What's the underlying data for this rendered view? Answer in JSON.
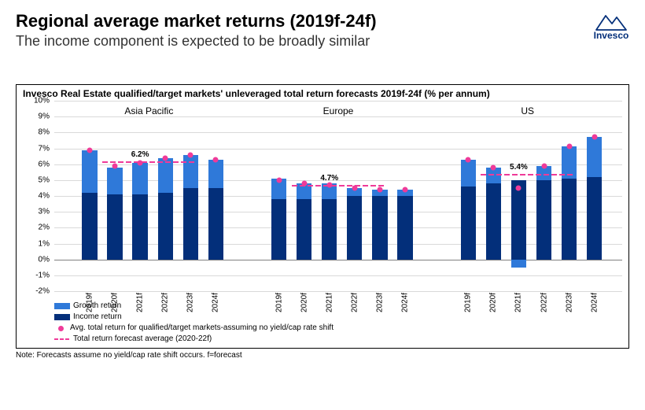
{
  "header": {
    "title": "Regional average market returns (2019f-24f)",
    "subtitle": "The income component is expected to be broadly similar",
    "brand": "Invesco"
  },
  "chart": {
    "title": "Invesco Real Estate qualified/target markets' unleveraged total return forecasts 2019f-24f (% per annum)",
    "type": "grouped-stacked-bar",
    "y": {
      "min": -2,
      "max": 10,
      "step": 1,
      "suffix": "%"
    },
    "years": [
      "2019f",
      "2020f",
      "2021f",
      "2022f",
      "2023f",
      "2024f"
    ],
    "colors": {
      "income": "#032f7a",
      "growth": "#2f79d9",
      "marker": "#ef3b99",
      "grid": "#d9d9d9"
    },
    "regions": [
      {
        "name": "Asia Pacific",
        "avg": {
          "value": 6.2,
          "label": "6.2%"
        },
        "bars": [
          {
            "income": 4.2,
            "growth": 2.7,
            "total": 6.9
          },
          {
            "income": 4.1,
            "growth": 1.7,
            "total": 5.9
          },
          {
            "income": 4.1,
            "growth": 2.0,
            "total": 6.1
          },
          {
            "income": 4.2,
            "growth": 2.2,
            "total": 6.4
          },
          {
            "income": 4.5,
            "growth": 2.1,
            "total": 6.6
          },
          {
            "income": 4.5,
            "growth": 1.8,
            "total": 6.3
          }
        ]
      },
      {
        "name": "Europe",
        "avg": {
          "value": 4.7,
          "label": "4.7%"
        },
        "bars": [
          {
            "income": 3.8,
            "growth": 1.3,
            "total": 5.0
          },
          {
            "income": 3.8,
            "growth": 1.0,
            "total": 4.8
          },
          {
            "income": 3.8,
            "growth": 1.0,
            "total": 4.7
          },
          {
            "income": 4.0,
            "growth": 0.5,
            "total": 4.5
          },
          {
            "income": 4.0,
            "growth": 0.4,
            "total": 4.4
          },
          {
            "income": 4.0,
            "growth": 0.4,
            "total": 4.4
          }
        ]
      },
      {
        "name": "US",
        "avg": {
          "value": 5.4,
          "label": "5.4%"
        },
        "bars": [
          {
            "income": 4.6,
            "growth": 1.7,
            "total": 6.3
          },
          {
            "income": 4.8,
            "growth": 1.0,
            "total": 5.8
          },
          {
            "income": 5.0,
            "growth": -0.5,
            "total": 4.5
          },
          {
            "income": 5.0,
            "growth": 0.9,
            "total": 5.9
          },
          {
            "income": 5.1,
            "growth": 2.0,
            "total": 7.1
          },
          {
            "income": 5.2,
            "growth": 2.5,
            "total": 7.7
          }
        ]
      }
    ],
    "legend": {
      "growth": "Growth return",
      "income": "Income return",
      "marker": "Avg. total return for qualified/target markets-assuming no yield/cap rate shift",
      "avg": "Total return forecast average (2020-22f)"
    },
    "note": "Note: Forecasts assume no yield/cap rate shift occurs. f=forecast"
  }
}
